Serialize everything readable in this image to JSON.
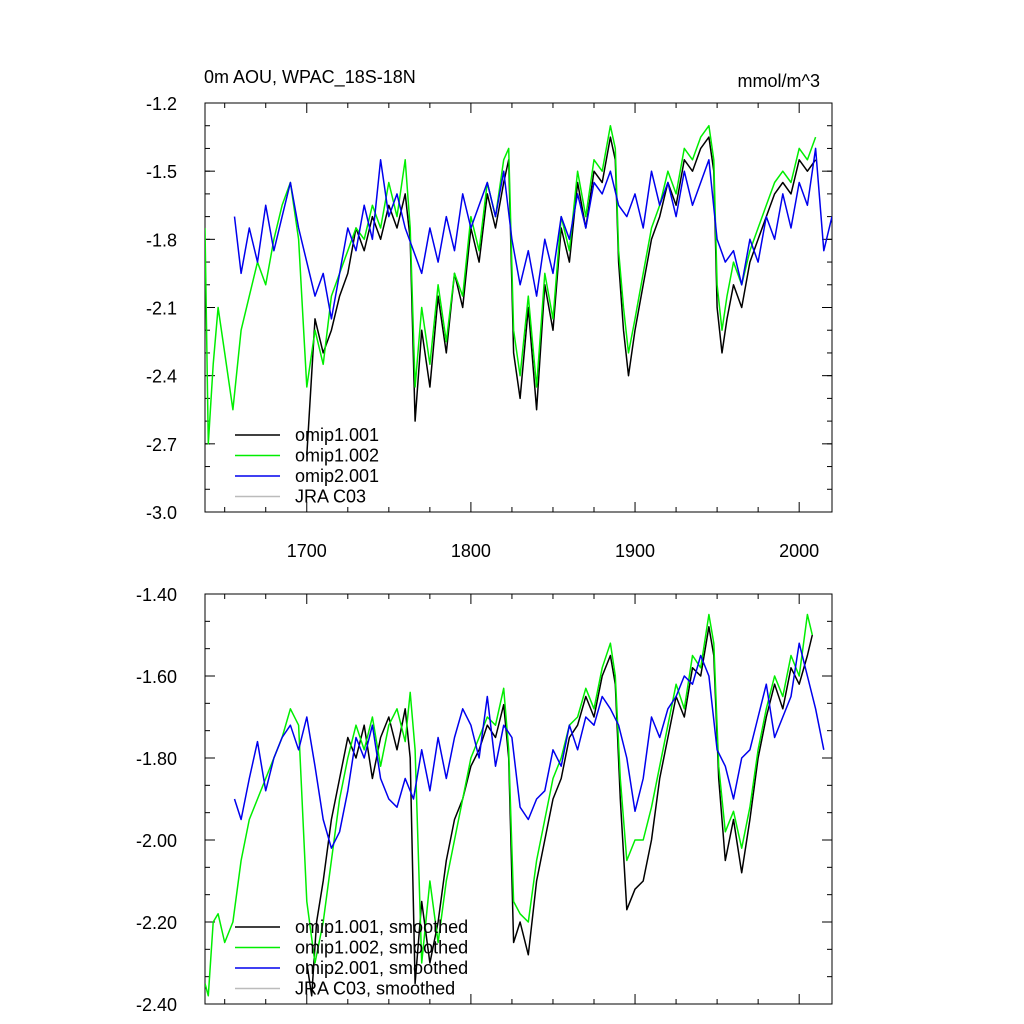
{
  "chart_data": [
    {
      "type": "line",
      "title": "0m AOU, WPAC_18S-18N",
      "units": "mmol/m^3",
      "xlabel": "",
      "ylabel": "",
      "xlim": [
        1638,
        2020
      ],
      "ylim": [
        -3.0,
        -1.2
      ],
      "xticks": [
        1700,
        1800,
        1900,
        2000
      ],
      "xtick_labels": [
        "1700",
        "1800",
        "1900",
        "2000"
      ],
      "yticks": [
        -3.0,
        -2.7,
        -2.4,
        -2.1,
        -1.8,
        -1.5,
        -1.2
      ],
      "ytick_labels": [
        "-3.0",
        "-2.7",
        "-2.4",
        "-2.1",
        "-1.8",
        "-1.5",
        "-1.2"
      ],
      "legend_position": "bottom-left",
      "series": [
        {
          "name": "omip1.001",
          "color": "#000000",
          "x": [
            1700,
            1705,
            1710,
            1715,
            1720,
            1725,
            1730,
            1735,
            1740,
            1745,
            1750,
            1755,
            1760,
            1763,
            1766,
            1770,
            1775,
            1780,
            1785,
            1790,
            1795,
            1800,
            1805,
            1810,
            1815,
            1820,
            1823,
            1826,
            1830,
            1835,
            1840,
            1845,
            1850,
            1855,
            1860,
            1865,
            1870,
            1875,
            1880,
            1885,
            1888,
            1890,
            1893,
            1896,
            1900,
            1905,
            1910,
            1915,
            1920,
            1925,
            1930,
            1935,
            1940,
            1945,
            1948,
            1950,
            1953,
            1956,
            1960,
            1965,
            1970,
            1975,
            1980,
            1985,
            1990,
            1995,
            2000,
            2005,
            2010
          ],
          "y": [
            -2.75,
            -2.15,
            -2.3,
            -2.2,
            -2.05,
            -1.95,
            -1.75,
            -1.85,
            -1.7,
            -1.8,
            -1.65,
            -1.75,
            -1.6,
            -1.8,
            -2.6,
            -2.2,
            -2.45,
            -2.05,
            -2.3,
            -1.95,
            -2.1,
            -1.75,
            -1.9,
            -1.6,
            -1.75,
            -1.55,
            -1.45,
            -2.3,
            -2.5,
            -2.1,
            -2.55,
            -2.0,
            -2.2,
            -1.75,
            -1.9,
            -1.55,
            -1.75,
            -1.5,
            -1.55,
            -1.35,
            -1.45,
            -1.9,
            -2.2,
            -2.4,
            -2.2,
            -2.0,
            -1.8,
            -1.7,
            -1.55,
            -1.65,
            -1.45,
            -1.5,
            -1.4,
            -1.35,
            -1.5,
            -2.1,
            -2.3,
            -2.15,
            -2.0,
            -2.1,
            -1.9,
            -1.8,
            -1.7,
            -1.6,
            -1.55,
            -1.6,
            -1.45,
            -1.5,
            -1.45
          ]
        },
        {
          "name": "omip1.002",
          "color": "#00ee00",
          "x": [
            1638,
            1640,
            1643,
            1646,
            1650,
            1655,
            1660,
            1665,
            1670,
            1675,
            1680,
            1685,
            1690,
            1695,
            1700,
            1705,
            1710,
            1715,
            1720,
            1725,
            1730,
            1735,
            1740,
            1745,
            1750,
            1755,
            1760,
            1763,
            1766,
            1770,
            1775,
            1780,
            1785,
            1790,
            1795,
            1800,
            1805,
            1810,
            1815,
            1820,
            1823,
            1826,
            1830,
            1835,
            1840,
            1845,
            1850,
            1855,
            1860,
            1865,
            1870,
            1875,
            1880,
            1885,
            1888,
            1890,
            1893,
            1896,
            1900,
            1905,
            1910,
            1915,
            1920,
            1925,
            1930,
            1935,
            1940,
            1945,
            1948,
            1950,
            1953,
            1956,
            1960,
            1965,
            1970,
            1975,
            1980,
            1985,
            1990,
            1995,
            2000,
            2005,
            2010
          ],
          "y": [
            -1.75,
            -2.7,
            -2.35,
            -2.1,
            -2.3,
            -2.55,
            -2.2,
            -2.05,
            -1.9,
            -2.0,
            -1.8,
            -1.65,
            -1.55,
            -1.8,
            -2.45,
            -2.2,
            -2.35,
            -2.05,
            -1.95,
            -1.85,
            -1.75,
            -1.8,
            -1.65,
            -1.75,
            -1.55,
            -1.7,
            -1.45,
            -1.75,
            -2.45,
            -2.1,
            -2.35,
            -2.0,
            -2.25,
            -1.95,
            -2.05,
            -1.7,
            -1.85,
            -1.55,
            -1.7,
            -1.45,
            -1.4,
            -2.2,
            -2.4,
            -2.05,
            -2.45,
            -1.95,
            -2.15,
            -1.7,
            -1.85,
            -1.5,
            -1.7,
            -1.45,
            -1.5,
            -1.3,
            -1.4,
            -1.85,
            -2.1,
            -2.3,
            -2.15,
            -1.95,
            -1.75,
            -1.65,
            -1.5,
            -1.6,
            -1.4,
            -1.45,
            -1.35,
            -1.3,
            -1.45,
            -2.0,
            -2.2,
            -2.05,
            -1.9,
            -2.0,
            -1.85,
            -1.75,
            -1.65,
            -1.55,
            -1.5,
            -1.55,
            -1.4,
            -1.45,
            -1.35
          ]
        },
        {
          "name": "omip2.001",
          "color": "#0000ee",
          "x": [
            1656,
            1660,
            1665,
            1670,
            1675,
            1680,
            1685,
            1690,
            1695,
            1700,
            1705,
            1710,
            1715,
            1720,
            1725,
            1730,
            1735,
            1740,
            1745,
            1750,
            1755,
            1760,
            1765,
            1770,
            1775,
            1780,
            1785,
            1790,
            1795,
            1800,
            1805,
            1810,
            1815,
            1820,
            1825,
            1830,
            1835,
            1840,
            1845,
            1850,
            1855,
            1860,
            1865,
            1870,
            1875,
            1880,
            1885,
            1890,
            1895,
            1900,
            1905,
            1910,
            1915,
            1920,
            1925,
            1930,
            1935,
            1940,
            1945,
            1950,
            1955,
            1960,
            1965,
            1970,
            1975,
            1980,
            1985,
            1990,
            1995,
            2000,
            2005,
            2010,
            2015,
            2020
          ],
          "y": [
            -1.7,
            -1.95,
            -1.75,
            -1.9,
            -1.65,
            -1.85,
            -1.7,
            -1.55,
            -1.75,
            -1.9,
            -2.05,
            -1.95,
            -2.15,
            -1.95,
            -1.75,
            -1.85,
            -1.65,
            -1.8,
            -1.45,
            -1.7,
            -1.6,
            -1.75,
            -1.85,
            -1.95,
            -1.75,
            -1.9,
            -1.7,
            -1.85,
            -1.6,
            -1.75,
            -1.65,
            -1.55,
            -1.7,
            -1.5,
            -1.8,
            -2.0,
            -1.85,
            -2.05,
            -1.8,
            -1.95,
            -1.7,
            -1.8,
            -1.6,
            -1.75,
            -1.55,
            -1.6,
            -1.5,
            -1.65,
            -1.7,
            -1.6,
            -1.75,
            -1.5,
            -1.65,
            -1.55,
            -1.7,
            -1.5,
            -1.65,
            -1.55,
            -1.45,
            -1.8,
            -1.9,
            -1.85,
            -2.0,
            -1.8,
            -1.9,
            -1.7,
            -1.8,
            -1.6,
            -1.75,
            -1.55,
            -1.65,
            -1.4,
            -1.85,
            -1.7
          ]
        },
        {
          "name": "JRA C03",
          "color": "#bbbbbb",
          "x": [],
          "y": []
        }
      ]
    },
    {
      "type": "line",
      "title": "",
      "xlabel": "",
      "ylabel": "",
      "xlim": [
        1638,
        2020
      ],
      "ylim": [
        -2.4,
        -1.4
      ],
      "xticks": [
        1700,
        1800,
        1900,
        2000
      ],
      "yticks": [
        -2.4,
        -2.2,
        -2.0,
        -1.8,
        -1.6,
        -1.4
      ],
      "ytick_labels": [
        "-2.40",
        "-2.20",
        "-2.00",
        "-1.80",
        "-1.60",
        "-1.40"
      ],
      "legend_position": "bottom-left",
      "series": [
        {
          "name": "omip1.001, smoothed",
          "color": "#000000",
          "x": [
            1700,
            1703,
            1706,
            1710,
            1715,
            1720,
            1725,
            1730,
            1735,
            1740,
            1745,
            1750,
            1755,
            1760,
            1763,
            1766,
            1770,
            1775,
            1780,
            1785,
            1790,
            1795,
            1800,
            1805,
            1810,
            1815,
            1820,
            1823,
            1826,
            1830,
            1835,
            1840,
            1845,
            1850,
            1855,
            1860,
            1865,
            1870,
            1875,
            1880,
            1885,
            1888,
            1891,
            1895,
            1900,
            1905,
            1910,
            1915,
            1920,
            1925,
            1930,
            1935,
            1940,
            1945,
            1948,
            1951,
            1955,
            1960,
            1965,
            1970,
            1975,
            1980,
            1985,
            1990,
            1995,
            2000,
            2005,
            2008
          ],
          "y": [
            -2.3,
            -2.38,
            -2.2,
            -2.1,
            -1.95,
            -1.85,
            -1.75,
            -1.8,
            -1.72,
            -1.85,
            -1.75,
            -1.7,
            -1.78,
            -1.68,
            -1.8,
            -2.35,
            -2.15,
            -2.3,
            -2.2,
            -2.05,
            -1.95,
            -1.9,
            -1.82,
            -1.78,
            -1.72,
            -1.75,
            -1.67,
            -1.8,
            -2.25,
            -2.2,
            -2.28,
            -2.1,
            -2.0,
            -1.9,
            -1.85,
            -1.75,
            -1.72,
            -1.65,
            -1.7,
            -1.6,
            -1.55,
            -1.62,
            -1.9,
            -2.17,
            -2.12,
            -2.1,
            -2.0,
            -1.85,
            -1.75,
            -1.65,
            -1.7,
            -1.58,
            -1.6,
            -1.48,
            -1.55,
            -1.85,
            -2.05,
            -1.95,
            -2.08,
            -1.95,
            -1.8,
            -1.7,
            -1.62,
            -1.68,
            -1.58,
            -1.62,
            -1.55,
            -1.5
          ]
        },
        {
          "name": "omip1.002, smoothed",
          "color": "#00ee00",
          "x": [
            1638,
            1640,
            1643,
            1646,
            1650,
            1655,
            1660,
            1665,
            1670,
            1675,
            1680,
            1685,
            1690,
            1695,
            1700,
            1705,
            1710,
            1715,
            1720,
            1725,
            1730,
            1735,
            1740,
            1745,
            1750,
            1755,
            1760,
            1763,
            1766,
            1770,
            1775,
            1780,
            1785,
            1790,
            1795,
            1800,
            1805,
            1810,
            1815,
            1820,
            1823,
            1826,
            1830,
            1835,
            1840,
            1845,
            1850,
            1855,
            1860,
            1865,
            1870,
            1875,
            1880,
            1885,
            1888,
            1891,
            1895,
            1900,
            1905,
            1910,
            1915,
            1920,
            1925,
            1930,
            1935,
            1940,
            1945,
            1948,
            1951,
            1955,
            1960,
            1965,
            1970,
            1975,
            1980,
            1985,
            1990,
            1995,
            2000,
            2005,
            2008
          ],
          "y": [
            -2.35,
            -2.38,
            -2.2,
            -2.18,
            -2.25,
            -2.2,
            -2.05,
            -1.95,
            -1.9,
            -1.85,
            -1.8,
            -1.75,
            -1.68,
            -1.72,
            -2.15,
            -2.3,
            -2.2,
            -2.05,
            -1.9,
            -1.8,
            -1.72,
            -1.78,
            -1.7,
            -1.82,
            -1.72,
            -1.68,
            -1.76,
            -1.64,
            -1.78,
            -2.3,
            -2.1,
            -2.25,
            -2.1,
            -2.0,
            -1.9,
            -1.8,
            -1.75,
            -1.7,
            -1.72,
            -1.63,
            -1.78,
            -2.15,
            -2.18,
            -2.2,
            -2.05,
            -1.95,
            -1.85,
            -1.8,
            -1.72,
            -1.7,
            -1.63,
            -1.68,
            -1.58,
            -1.52,
            -1.6,
            -1.85,
            -2.05,
            -2.0,
            -2.0,
            -1.92,
            -1.82,
            -1.72,
            -1.62,
            -1.68,
            -1.55,
            -1.58,
            -1.45,
            -1.52,
            -1.82,
            -1.98,
            -1.93,
            -2.02,
            -1.92,
            -1.78,
            -1.68,
            -1.6,
            -1.65,
            -1.55,
            -1.6,
            -1.45,
            -1.5
          ]
        },
        {
          "name": "omip2.001, smoothed",
          "color": "#0000ee",
          "x": [
            1656,
            1660,
            1665,
            1670,
            1675,
            1680,
            1685,
            1690,
            1695,
            1700,
            1705,
            1710,
            1715,
            1720,
            1725,
            1730,
            1735,
            1740,
            1745,
            1750,
            1755,
            1760,
            1765,
            1770,
            1775,
            1780,
            1785,
            1790,
            1795,
            1800,
            1805,
            1810,
            1815,
            1820,
            1825,
            1830,
            1835,
            1840,
            1845,
            1850,
            1855,
            1860,
            1865,
            1870,
            1875,
            1880,
            1885,
            1890,
            1895,
            1900,
            1905,
            1910,
            1915,
            1920,
            1925,
            1930,
            1935,
            1940,
            1945,
            1950,
            1955,
            1960,
            1965,
            1970,
            1975,
            1980,
            1985,
            1990,
            1995,
            2000,
            2005,
            2010,
            2015
          ],
          "y": [
            -1.9,
            -1.95,
            -1.85,
            -1.76,
            -1.88,
            -1.8,
            -1.75,
            -1.72,
            -1.78,
            -1.7,
            -1.82,
            -1.95,
            -2.02,
            -1.98,
            -1.88,
            -1.75,
            -1.8,
            -1.72,
            -1.85,
            -1.9,
            -1.92,
            -1.85,
            -1.9,
            -1.78,
            -1.88,
            -1.75,
            -1.85,
            -1.75,
            -1.68,
            -1.72,
            -1.8,
            -1.65,
            -1.82,
            -1.72,
            -1.75,
            -1.92,
            -1.95,
            -1.9,
            -1.88,
            -1.78,
            -1.82,
            -1.72,
            -1.78,
            -1.7,
            -1.72,
            -1.65,
            -1.68,
            -1.72,
            -1.8,
            -1.93,
            -1.85,
            -1.7,
            -1.75,
            -1.68,
            -1.65,
            -1.6,
            -1.62,
            -1.55,
            -1.6,
            -1.78,
            -1.82,
            -1.9,
            -1.8,
            -1.78,
            -1.7,
            -1.62,
            -1.75,
            -1.7,
            -1.65,
            -1.52,
            -1.6,
            -1.68,
            -1.78
          ]
        },
        {
          "name": "JRA C03, smoothed",
          "color": "#bbbbbb",
          "x": [],
          "y": []
        }
      ]
    }
  ]
}
